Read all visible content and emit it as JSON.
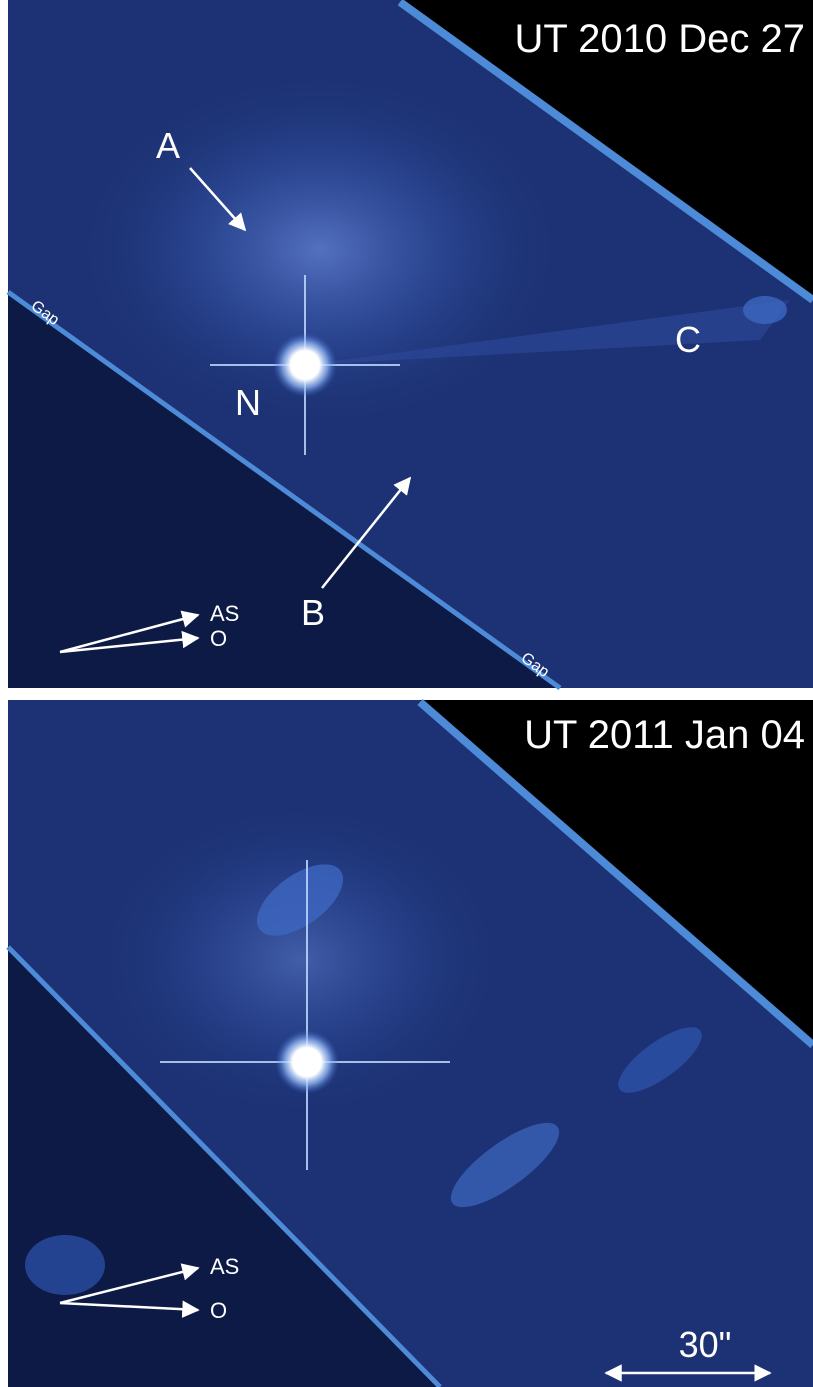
{
  "panels": [
    {
      "date": "UT 2010 Dec 27",
      "features": [
        "A",
        "N",
        "B",
        "C"
      ],
      "gap_labels": [
        "Gap",
        "Gap"
      ],
      "directions": [
        "AS",
        "O"
      ]
    },
    {
      "date": "UT 2011 Jan 04",
      "directions": [
        "AS",
        "O"
      ],
      "scale": "30\""
    }
  ]
}
